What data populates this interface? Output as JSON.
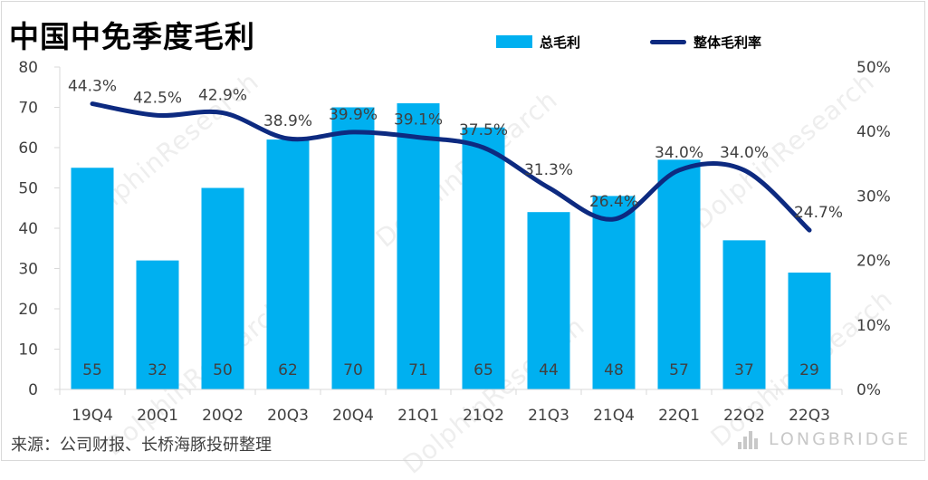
{
  "title": "中国中免季度毛利",
  "legend": {
    "bar_label": "总毛利",
    "line_label": "整体毛利率"
  },
  "source": "来源：公司财报、长桥海豚投研整理",
  "watermark": {
    "text": "DolphinResearch",
    "brand": "LONGBRIDGE"
  },
  "colors": {
    "bar": "#00b0f0",
    "line": "#0d2a80",
    "text": "#404040",
    "grid": "#d9d9d9"
  },
  "chart_data": {
    "type": "bar+line",
    "title": "中国中免季度毛利",
    "categories": [
      "19Q4",
      "20Q1",
      "20Q2",
      "20Q3",
      "20Q4",
      "21Q1",
      "21Q2",
      "21Q3",
      "21Q4",
      "22Q1",
      "22Q2",
      "22Q3"
    ],
    "series": [
      {
        "name": "总毛利",
        "type": "bar",
        "axis": "left",
        "values": [
          55,
          32,
          50,
          62,
          70,
          71,
          65,
          44,
          48,
          57,
          37,
          29
        ],
        "labels": [
          "55",
          "32",
          "50",
          "62",
          "70",
          "71",
          "65",
          "44",
          "48",
          "57",
          "37",
          "29"
        ]
      },
      {
        "name": "整体毛利率",
        "type": "line",
        "axis": "right",
        "smooth": true,
        "values": [
          44.3,
          42.5,
          42.9,
          38.9,
          39.9,
          39.1,
          37.5,
          31.3,
          26.4,
          34.0,
          34.0,
          24.7
        ],
        "labels": [
          "44.3%",
          "42.5%",
          "42.9%",
          "38.9%",
          "39.9%",
          "39.1%",
          "37.5%",
          "31.3%",
          "26.4%",
          "34.0%",
          "34.0%",
          "24.7%"
        ]
      }
    ],
    "y_left": {
      "min": 0,
      "max": 80,
      "ticks": [
        "0",
        "10",
        "20",
        "30",
        "40",
        "50",
        "60",
        "70",
        "80"
      ]
    },
    "y_right": {
      "min": 0,
      "max": 50,
      "ticks": [
        "0%",
        "10%",
        "20%",
        "30%",
        "40%",
        "50%"
      ]
    },
    "grid": false,
    "legend_position": "top"
  }
}
